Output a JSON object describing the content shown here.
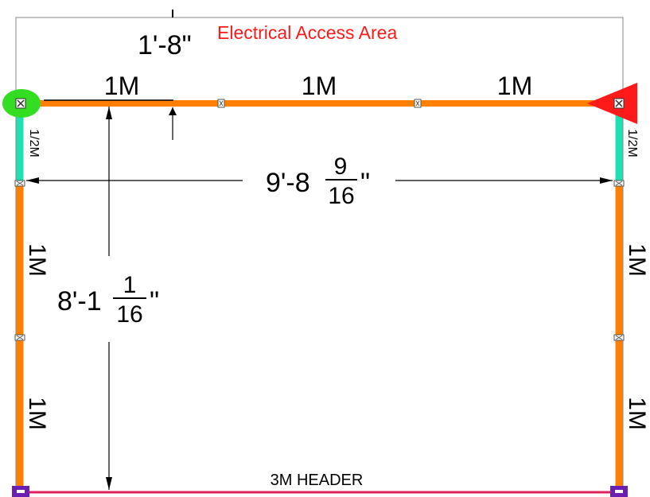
{
  "labels": {
    "area": "Electrical Access Area",
    "top_offset": "1'-8\"",
    "header": "3M HEADER"
  },
  "segments": {
    "top_left": "1M",
    "top_middle": "1M",
    "top_right": "1M",
    "left_half": "1/2M",
    "right_half": "1/2M",
    "left_upper": "1M",
    "left_lower": "1M",
    "right_upper": "1M",
    "right_lower": "1M"
  },
  "dimensions": {
    "width": {
      "whole": "9'-8",
      "num": "9",
      "den": "16",
      "unit": "\""
    },
    "height": {
      "whole": "8'-1",
      "num": "1",
      "den": "16",
      "unit": "\""
    }
  },
  "colors": {
    "panel": "#ff8000",
    "half_panel": "#20e0b0",
    "header": "#e0205a",
    "area_text": "#ff1a1a",
    "start_marker": "#33dd22",
    "end_marker": "#ff1a1a",
    "foot": "#6a1fb0"
  }
}
